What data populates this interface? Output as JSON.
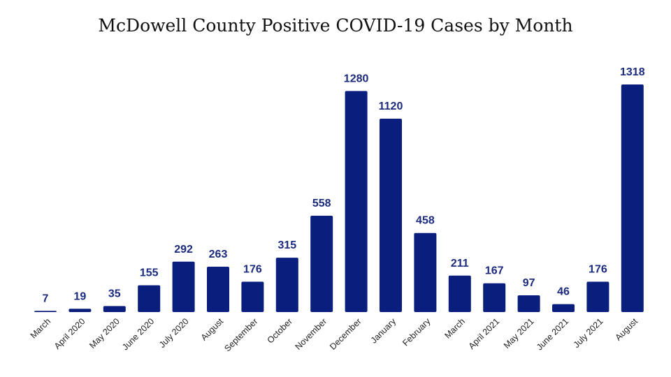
{
  "chart_data": {
    "type": "bar",
    "title": "McDowell County Positive COVID-19 Cases by Month",
    "xlabel": "",
    "ylabel": "",
    "categories": [
      "March",
      "April 2020",
      "May 2020",
      "June 2020",
      "July 2020",
      "August",
      "September",
      "October",
      "November",
      "December",
      "January",
      "February",
      "March",
      "April 2021",
      "May 2021",
      "June 2021",
      "July 2021",
      "August"
    ],
    "values": [
      7,
      19,
      35,
      155,
      292,
      263,
      176,
      315,
      558,
      1280,
      1120,
      458,
      211,
      167,
      97,
      46,
      176,
      1318
    ],
    "ylim": [
      0,
      1318
    ],
    "grid": false,
    "data_labels": true,
    "bar_color": "#0a1f7d",
    "label_color": "#1b2a7e"
  }
}
